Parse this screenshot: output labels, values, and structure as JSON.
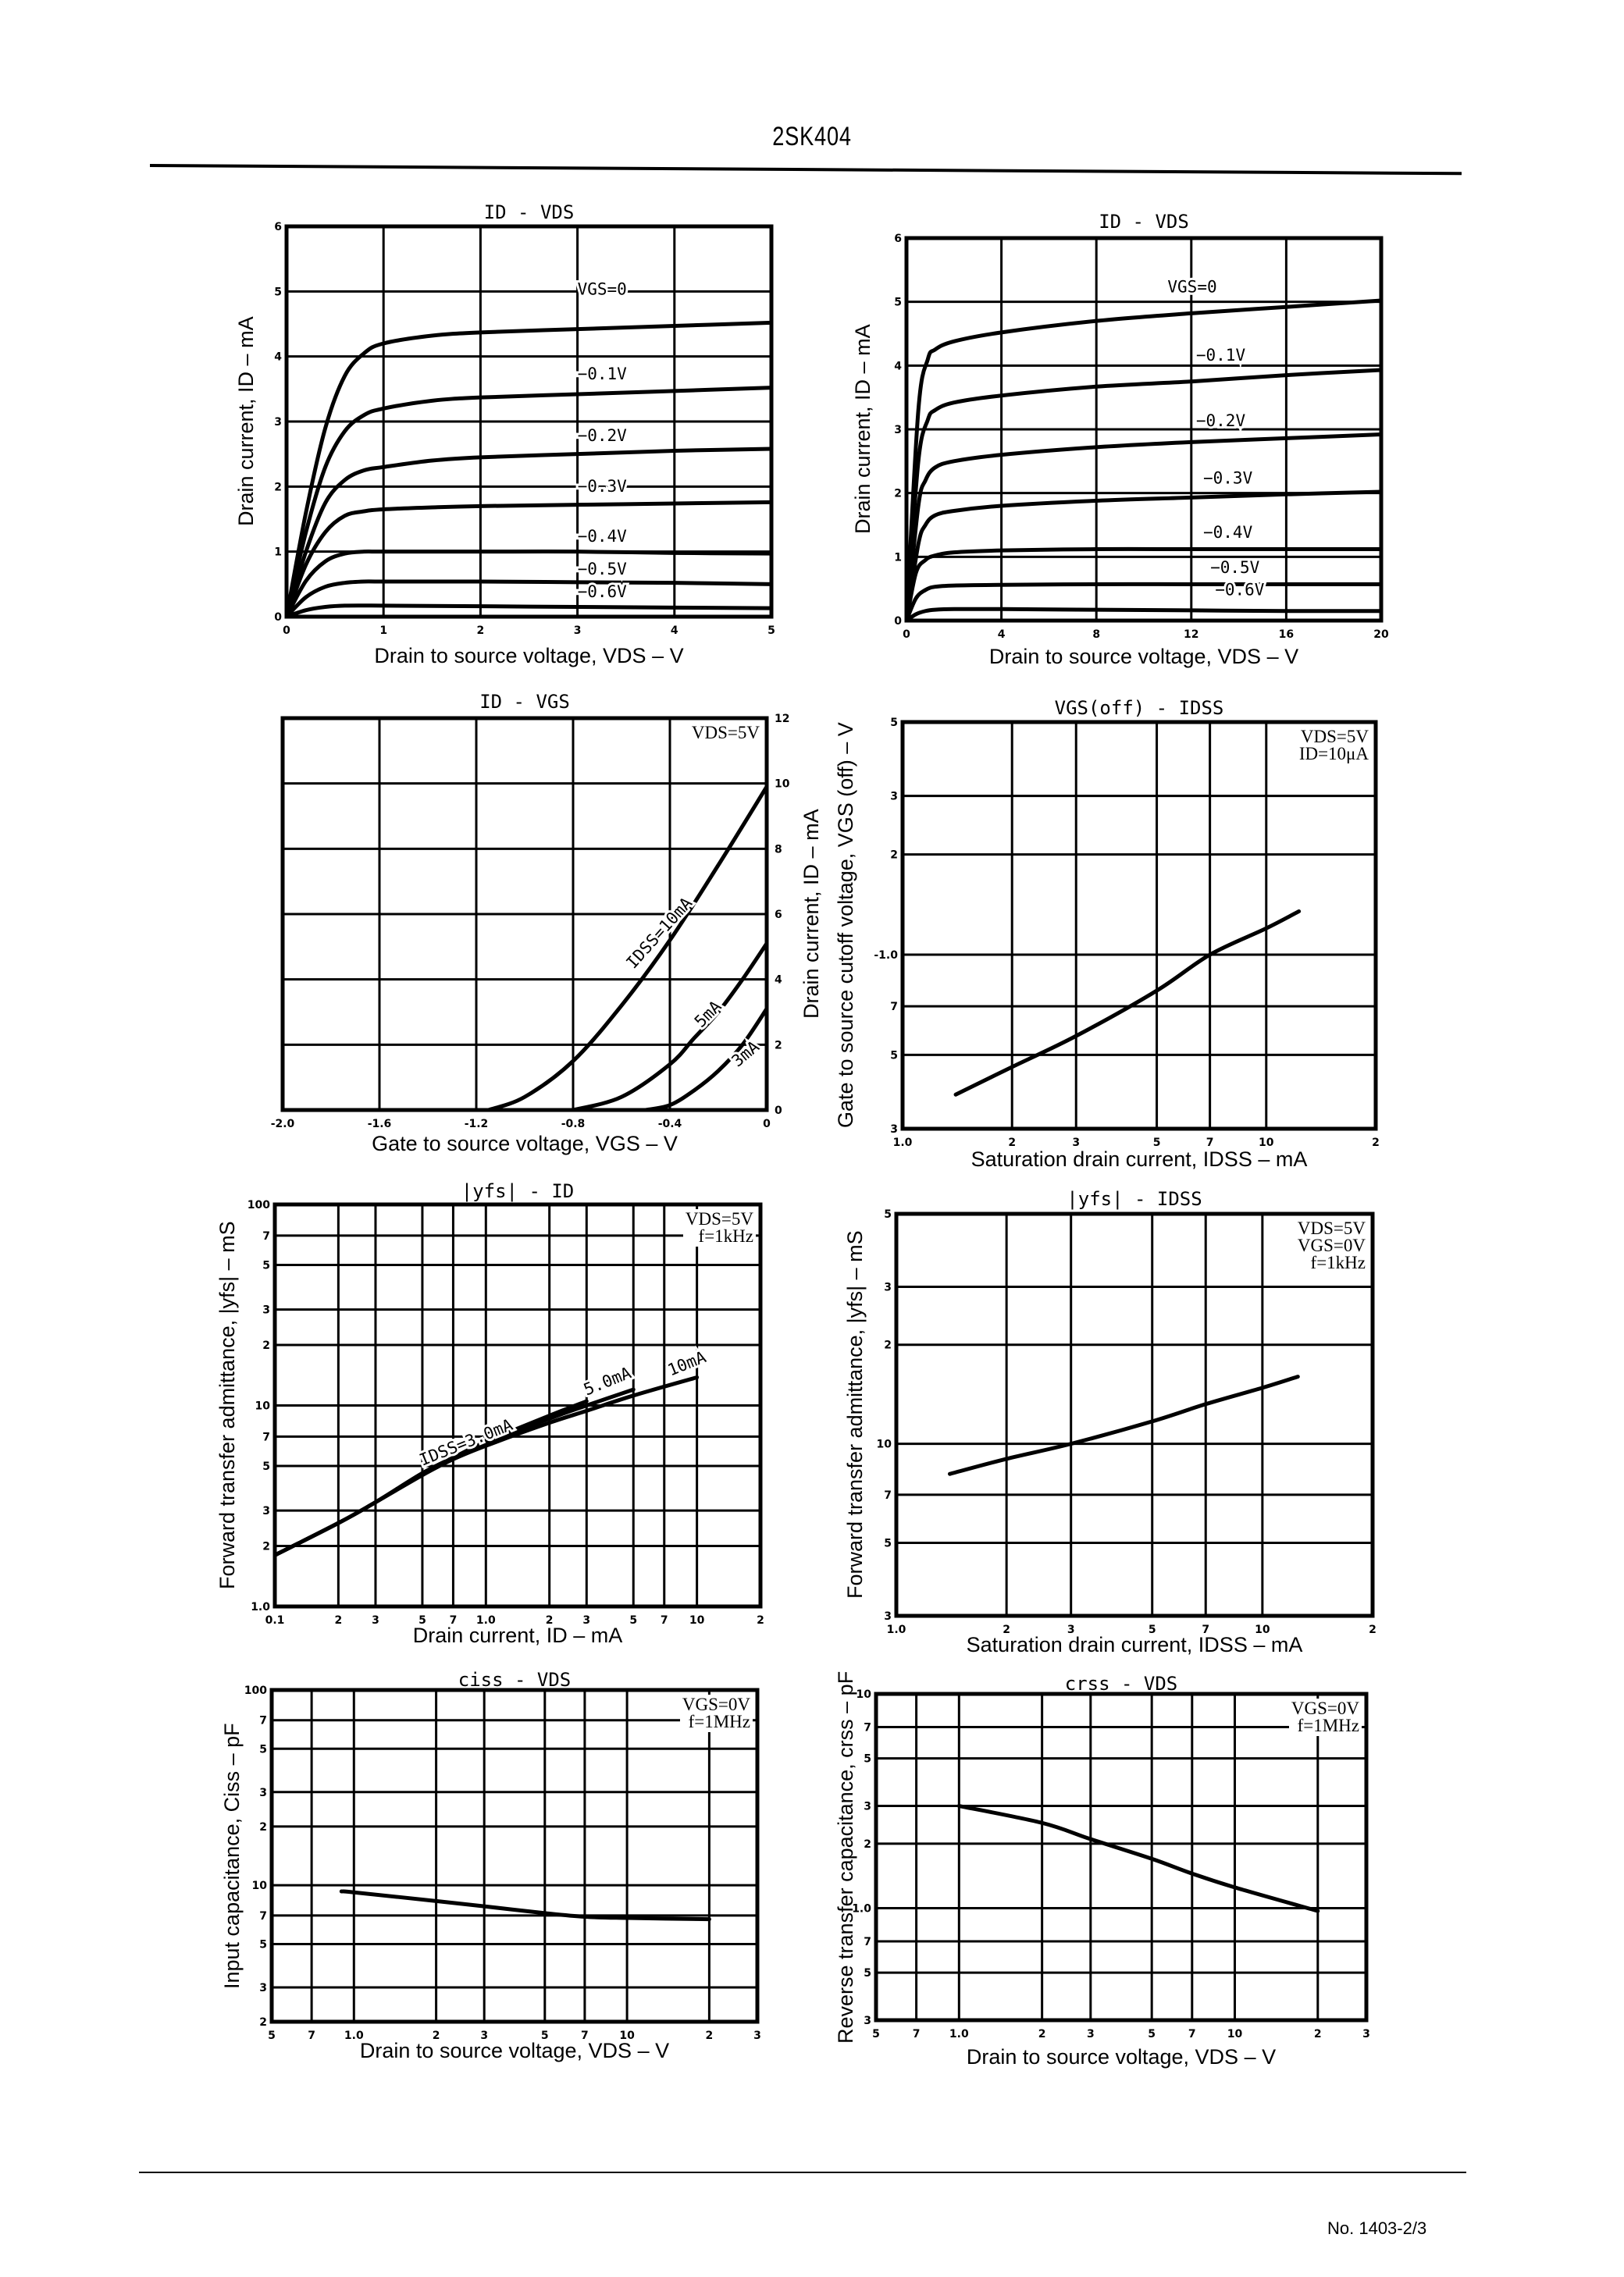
{
  "header": {
    "title": "2SK404"
  },
  "footer": {
    "doc_number": "No. 1403-2/3"
  },
  "chart_data": [
    {
      "id": "id_vds_5v",
      "type": "line",
      "title": "ID - VDS",
      "xlabel": "Drain to source voltage, VDS – V",
      "ylabel": "Drain current, ID – mA",
      "xscale": "linear",
      "yscale": "linear",
      "xlim": [
        0,
        5
      ],
      "ylim": [
        0,
        6
      ],
      "xticks": [
        0,
        1,
        2,
        3,
        4,
        5
      ],
      "xtick_labels": [
        "0",
        "1",
        "2",
        "3",
        "4",
        "5"
      ],
      "yticks": [
        0,
        1,
        2,
        3,
        4,
        5,
        6
      ],
      "ytick_labels": [
        "0",
        "1",
        "2",
        "3",
        "4",
        "5",
        "6"
      ],
      "grid": true,
      "conditions": [],
      "series": [
        {
          "name": "VGS=0",
          "x": [
            0,
            0.2,
            0.4,
            0.6,
            0.8,
            1.0,
            1.5,
            2,
            3,
            4,
            5
          ],
          "y": [
            0,
            1.6,
            2.9,
            3.7,
            4.05,
            4.2,
            4.32,
            4.37,
            4.42,
            4.47,
            4.52
          ]
        },
        {
          "name": "-0.1V",
          "x": [
            0,
            0.2,
            0.4,
            0.6,
            0.8,
            1.0,
            1.5,
            2,
            3,
            4,
            5
          ],
          "y": [
            0,
            1.3,
            2.3,
            2.85,
            3.1,
            3.2,
            3.32,
            3.37,
            3.42,
            3.47,
            3.52
          ]
        },
        {
          "name": "-0.2V",
          "x": [
            0,
            0.2,
            0.4,
            0.6,
            0.8,
            1.0,
            1.5,
            2,
            3,
            4,
            5
          ],
          "y": [
            0,
            1.0,
            1.75,
            2.1,
            2.25,
            2.3,
            2.4,
            2.45,
            2.5,
            2.55,
            2.58
          ]
        },
        {
          "name": "-0.3V",
          "x": [
            0,
            0.2,
            0.4,
            0.6,
            0.8,
            1.0,
            1.5,
            2,
            3,
            4,
            5
          ],
          "y": [
            0,
            0.8,
            1.3,
            1.55,
            1.62,
            1.65,
            1.68,
            1.7,
            1.72,
            1.74,
            1.76
          ]
        },
        {
          "name": "-0.4V",
          "x": [
            0,
            0.2,
            0.4,
            0.6,
            0.8,
            1.0,
            2,
            3,
            4,
            5
          ],
          "y": [
            0,
            0.55,
            0.85,
            0.97,
            1.0,
            1.0,
            1.0,
            1.0,
            0.98,
            0.97
          ]
        },
        {
          "name": "-0.5V",
          "x": [
            0,
            0.2,
            0.4,
            0.6,
            0.8,
            1.0,
            2,
            3,
            4,
            5
          ],
          "y": [
            0,
            0.3,
            0.46,
            0.52,
            0.54,
            0.54,
            0.54,
            0.53,
            0.52,
            0.5
          ]
        },
        {
          "name": "-0.6V",
          "x": [
            0,
            0.2,
            0.4,
            0.6,
            1.0,
            2,
            3,
            4,
            5
          ],
          "y": [
            0,
            0.1,
            0.15,
            0.17,
            0.17,
            0.16,
            0.15,
            0.14,
            0.13
          ]
        }
      ],
      "labels": [
        {
          "text": "VGS=0",
          "x": 3.0,
          "y": 4.95
        },
        {
          "text": "−0.1V",
          "x": 3.0,
          "y": 3.65
        },
        {
          "text": "−0.2V",
          "x": 3.0,
          "y": 2.7
        },
        {
          "text": "−0.3V",
          "x": 3.0,
          "y": 1.92
        },
        {
          "text": "−0.4V",
          "x": 3.0,
          "y": 1.15
        },
        {
          "text": "−0.5V",
          "x": 3.0,
          "y": 0.65
        },
        {
          "text": "−0.6V",
          "x": 3.0,
          "y": 0.3
        }
      ]
    },
    {
      "id": "id_vds_20v",
      "type": "line",
      "title": "ID - VDS",
      "xlabel": "Drain to source voltage, VDS – V",
      "ylabel": "Drain current, ID – mA",
      "xscale": "linear",
      "yscale": "linear",
      "xlim": [
        0,
        20
      ],
      "ylim": [
        0,
        6
      ],
      "xticks": [
        0,
        4,
        8,
        12,
        16,
        20
      ],
      "xtick_labels": [
        "0",
        "4",
        "8",
        "12",
        "16",
        "20"
      ],
      "yticks": [
        0,
        1,
        2,
        3,
        4,
        5,
        6
      ],
      "ytick_labels": [
        "0",
        "1",
        "2",
        "3",
        "4",
        "5",
        "6"
      ],
      "grid": true,
      "conditions": [],
      "series": [
        {
          "name": "VGS=0",
          "x": [
            0,
            0.5,
            0.9,
            1.2,
            2,
            4,
            8,
            12,
            16,
            20
          ],
          "y": [
            0,
            3.3,
            4.1,
            4.25,
            4.38,
            4.52,
            4.7,
            4.82,
            4.92,
            5.02
          ]
        },
        {
          "name": "-0.1V",
          "x": [
            0,
            0.5,
            0.9,
            1.2,
            2,
            4,
            8,
            12,
            16,
            20
          ],
          "y": [
            0,
            2.5,
            3.15,
            3.3,
            3.42,
            3.53,
            3.67,
            3.75,
            3.85,
            3.93
          ]
        },
        {
          "name": "-0.2V",
          "x": [
            0,
            0.5,
            0.8,
            1.2,
            2,
            4,
            8,
            12,
            16,
            20
          ],
          "y": [
            0,
            1.8,
            2.2,
            2.4,
            2.5,
            2.6,
            2.72,
            2.8,
            2.86,
            2.92
          ]
        },
        {
          "name": "-0.3V",
          "x": [
            0,
            0.5,
            0.8,
            1.2,
            2,
            4,
            8,
            12,
            16,
            20
          ],
          "y": [
            0,
            1.2,
            1.5,
            1.65,
            1.72,
            1.8,
            1.88,
            1.93,
            1.98,
            2.02
          ]
        },
        {
          "name": "-0.4V",
          "x": [
            0,
            0.4,
            0.8,
            1.2,
            2,
            4,
            8,
            12,
            16,
            20
          ],
          "y": [
            0,
            0.75,
            0.95,
            1.02,
            1.07,
            1.1,
            1.12,
            1.12,
            1.12,
            1.12
          ]
        },
        {
          "name": "-0.5V",
          "x": [
            0,
            0.4,
            0.8,
            1.2,
            2,
            4,
            8,
            12,
            16,
            20
          ],
          "y": [
            0,
            0.35,
            0.48,
            0.53,
            0.55,
            0.56,
            0.57,
            0.57,
            0.57,
            0.57
          ]
        },
        {
          "name": "-0.6V",
          "x": [
            0,
            0.4,
            0.8,
            1.2,
            2,
            4,
            8,
            12,
            16,
            20
          ],
          "y": [
            0,
            0.1,
            0.15,
            0.17,
            0.18,
            0.18,
            0.17,
            0.16,
            0.15,
            0.15
          ]
        }
      ],
      "labels": [
        {
          "text": "VGS=0",
          "x": 11,
          "y": 5.15
        },
        {
          "text": "−0.1V",
          "x": 12.2,
          "y": 4.08
        },
        {
          "text": "−0.2V",
          "x": 12.2,
          "y": 3.05
        },
        {
          "text": "−0.3V",
          "x": 12.5,
          "y": 2.15
        },
        {
          "text": "−0.4V",
          "x": 12.5,
          "y": 1.3
        },
        {
          "text": "−0.5V",
          "x": 12.8,
          "y": 0.75
        },
        {
          "text": "−0.6V",
          "x": 13.0,
          "y": 0.4
        }
      ]
    },
    {
      "id": "id_vgs",
      "type": "line",
      "title": "ID - VGS",
      "xlabel": "Gate to source voltage, VGS – V",
      "ylabel": "Drain current, ID – mA",
      "yaxis_side": "right",
      "xscale": "linear",
      "yscale": "linear",
      "xlim": [
        -2.0,
        0
      ],
      "ylim": [
        0,
        12
      ],
      "xticks": [
        -2.0,
        -1.6,
        -1.2,
        -0.8,
        -0.4,
        0
      ],
      "xtick_labels": [
        "-2.0",
        "-1.6",
        "-1.2",
        "-0.8",
        "-0.4",
        "0"
      ],
      "yticks": [
        0,
        2,
        4,
        6,
        8,
        10,
        12
      ],
      "ytick_labels": [
        "0",
        "2",
        "4",
        "6",
        "8",
        "10",
        "12"
      ],
      "grid": true,
      "conditions": [
        "VDS=5V"
      ],
      "series": [
        {
          "name": "IDSS=10mA",
          "x": [
            -1.15,
            -1.0,
            -0.8,
            -0.6,
            -0.4,
            -0.2,
            0
          ],
          "y": [
            0,
            0.4,
            1.5,
            3.2,
            5.2,
            7.5,
            9.9
          ]
        },
        {
          "name": "5mA",
          "x": [
            -0.8,
            -0.6,
            -0.4,
            -0.3,
            -0.2,
            -0.1,
            0
          ],
          "y": [
            0,
            0.4,
            1.4,
            2.2,
            3.0,
            4.0,
            5.1
          ]
        },
        {
          "name": "3mA",
          "x": [
            -0.5,
            -0.4,
            -0.3,
            -0.2,
            -0.1,
            0
          ],
          "y": [
            0,
            0.15,
            0.6,
            1.2,
            2.0,
            3.1
          ]
        }
      ],
      "labels": [
        {
          "text": "IDSS=10mA",
          "x": -0.55,
          "y": 4.3,
          "rotate": -48
        },
        {
          "text": "5mA",
          "x": -0.27,
          "y": 2.5,
          "rotate": -45
        },
        {
          "text": "3mA",
          "x": -0.12,
          "y": 1.3,
          "rotate": -40
        }
      ]
    },
    {
      "id": "vgsoff_idss",
      "type": "line",
      "title": "VGS(off) - IDSS",
      "xlabel": "Saturation drain current, IDSS – mA",
      "ylabel": "Gate to source cutoff voltage, VGS (off) – V",
      "xscale": "log",
      "yscale": "log",
      "xlim": [
        1.0,
        20
      ],
      "ylim": [
        0.3,
        5
      ],
      "xticks": [
        1.0,
        2,
        3,
        5,
        7,
        10,
        20
      ],
      "xtick_labels": [
        "1.0",
        "2",
        "3",
        "5",
        "7",
        "10",
        "2"
      ],
      "yticks": [
        0.3,
        0.5,
        0.7,
        1.0,
        2,
        3,
        5
      ],
      "ytick_labels": [
        "3",
        "5",
        "7",
        "-1.0",
        "2",
        "3",
        "5"
      ],
      "grid": true,
      "conditions": [
        "VDS=5V",
        "ID=10μA"
      ],
      "series": [
        {
          "name": "VGS(off)",
          "x": [
            1.4,
            2,
            3,
            5,
            7,
            10,
            12.3
          ],
          "y": [
            0.38,
            0.46,
            0.57,
            0.78,
            1.0,
            1.2,
            1.35
          ]
        }
      ],
      "labels": []
    },
    {
      "id": "yfs_id",
      "type": "line",
      "title": "|yfs| - ID",
      "xlabel": "Drain current, ID – mA",
      "ylabel": "Forward transfer admittance, |yfs| – mS",
      "xscale": "log",
      "yscale": "log",
      "xlim": [
        0.1,
        20
      ],
      "ylim": [
        1.0,
        100
      ],
      "xticks": [
        0.1,
        0.2,
        0.3,
        0.5,
        0.7,
        1.0,
        2,
        3,
        5,
        7,
        10,
        20
      ],
      "xtick_labels": [
        "0.1",
        "2",
        "3",
        "5",
        "7",
        "1.0",
        "2",
        "3",
        "5",
        "7",
        "10",
        "2"
      ],
      "yticks": [
        1.0,
        2,
        3,
        5,
        7,
        10,
        20,
        30,
        50,
        70,
        100
      ],
      "ytick_labels": [
        "1.0",
        "2",
        "3",
        "5",
        "7",
        "10",
        "2",
        "3",
        "5",
        "7",
        "100"
      ],
      "grid": true,
      "conditions": [
        "VDS=5V",
        "f=1kHz"
      ],
      "series": [
        {
          "name": "IDSS=3.0mA",
          "x": [
            0.1,
            0.2,
            0.3,
            0.5,
            0.7,
            1.0,
            2.0,
            3.0
          ],
          "y": [
            1.8,
            2.6,
            3.3,
            4.6,
            5.5,
            6.6,
            8.9,
            10.5
          ]
        },
        {
          "name": "5.0mA",
          "x": [
            0.1,
            0.2,
            0.3,
            0.5,
            0.7,
            1.0,
            2.0,
            3.0,
            5.0
          ],
          "y": [
            1.8,
            2.6,
            3.3,
            4.6,
            5.5,
            6.5,
            8.6,
            10.0,
            12.0
          ]
        },
        {
          "name": "10mA",
          "x": [
            0.1,
            0.2,
            0.3,
            0.5,
            0.7,
            1.0,
            2.0,
            3.0,
            5.0,
            10.0
          ],
          "y": [
            1.8,
            2.6,
            3.3,
            4.5,
            5.4,
            6.3,
            8.2,
            9.4,
            11.2,
            13.8
          ]
        }
      ],
      "labels": [
        {
          "text": "IDSS=3.0mA",
          "x": 0.5,
          "y": 5.0,
          "rotate": -22
        },
        {
          "text": "5.0mA",
          "x": 3.0,
          "y": 11.2,
          "rotate": -22
        },
        {
          "text": "10mA",
          "x": 7.5,
          "y": 14.0,
          "rotate": -22
        }
      ]
    },
    {
      "id": "yfs_idss",
      "type": "line",
      "title": "|yfs| - IDSS",
      "xlabel": "Saturation drain current, IDSS – mA",
      "ylabel": "Forward transfer admittance, |yfs| – mS",
      "xscale": "log",
      "yscale": "log",
      "xlim": [
        1.0,
        20
      ],
      "ylim": [
        3,
        50
      ],
      "xticks": [
        1.0,
        2,
        3,
        5,
        7,
        10,
        20
      ],
      "xtick_labels": [
        "1.0",
        "2",
        "3",
        "5",
        "7",
        "10",
        "2"
      ],
      "yticks": [
        3,
        5,
        7,
        10,
        20,
        30,
        50
      ],
      "ytick_labels": [
        "3",
        "5",
        "7",
        "10",
        "2",
        "3",
        "5"
      ],
      "grid": true,
      "conditions": [
        "VDS=5V",
        "VGS=0V",
        "f=1kHz"
      ],
      "series": [
        {
          "name": "|yfs|",
          "x": [
            1.4,
            2,
            3,
            5,
            7,
            10,
            12.5
          ],
          "y": [
            8.1,
            9.0,
            10.0,
            11.7,
            13.2,
            14.8,
            16.0
          ]
        }
      ],
      "labels": []
    },
    {
      "id": "ciss_vds",
      "type": "line",
      "title": "ciss - VDS",
      "xlabel": "Drain to source voltage, VDS – V",
      "ylabel": "Input capacitance, Ciss – pF",
      "xscale": "log",
      "yscale": "log",
      "xlim": [
        0.5,
        30
      ],
      "ylim": [
        2,
        100
      ],
      "xticks": [
        0.5,
        0.7,
        1.0,
        2,
        3,
        5,
        7,
        10,
        20,
        30
      ],
      "xtick_labels": [
        "5",
        "7",
        "1.0",
        "2",
        "3",
        "5",
        "7",
        "10",
        "2",
        "3"
      ],
      "yticks": [
        2,
        3,
        5,
        7,
        10,
        20,
        30,
        50,
        70,
        100
      ],
      "ytick_labels": [
        "2",
        "3",
        "5",
        "7",
        "10",
        "2",
        "3",
        "5",
        "7",
        "100"
      ],
      "grid": true,
      "conditions": [
        "VGS=0V",
        "f=1MHz"
      ],
      "series": [
        {
          "name": "Ciss",
          "x": [
            0.9,
            1.0,
            2,
            3,
            5,
            7,
            10,
            20
          ],
          "y": [
            9.3,
            9.2,
            8.3,
            7.8,
            7.2,
            6.9,
            6.8,
            6.7
          ]
        }
      ],
      "labels": []
    },
    {
      "id": "crss_vds",
      "type": "line",
      "title": "crss - VDS",
      "xlabel": "Drain to source voltage, VDS – V",
      "ylabel": "Reverse transfer capacitance, crss – pF",
      "xscale": "log",
      "yscale": "log",
      "xlim": [
        0.5,
        30
      ],
      "ylim": [
        0.3,
        10
      ],
      "xticks": [
        0.5,
        0.7,
        1.0,
        2,
        3,
        5,
        7,
        10,
        20,
        30
      ],
      "xtick_labels": [
        "5",
        "7",
        "1.0",
        "2",
        "3",
        "5",
        "7",
        "10",
        "2",
        "3"
      ],
      "yticks": [
        0.3,
        0.5,
        0.7,
        1.0,
        2,
        3,
        5,
        7,
        10
      ],
      "ytick_labels": [
        "3",
        "5",
        "7",
        "1.0",
        "2",
        "3",
        "5",
        "7",
        "10"
      ],
      "grid": true,
      "conditions": [
        "VGS=0V",
        "f=1MHz"
      ],
      "series": [
        {
          "name": "Crss",
          "x": [
            1.0,
            2,
            3,
            5,
            7,
            10,
            20
          ],
          "y": [
            3.0,
            2.5,
            2.1,
            1.7,
            1.45,
            1.25,
            0.97
          ]
        }
      ],
      "labels": []
    }
  ]
}
